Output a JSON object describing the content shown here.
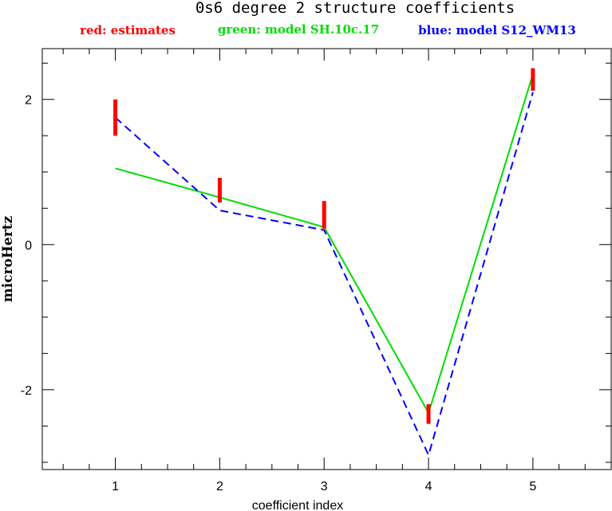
{
  "chart_data": {
    "type": "line",
    "title": "0s6 degree 2 structure coefficients",
    "xlabel": "coefficient index",
    "ylabel": "microHertz",
    "xlim": [
      0.3,
      5.75
    ],
    "ylim": [
      -3.1,
      2.7
    ],
    "x_ticks": [
      1,
      2,
      3,
      4,
      5
    ],
    "y_ticks": [
      -2,
      0,
      2
    ],
    "grid": false,
    "legend_position": "top",
    "legend": [
      {
        "text": "red: estimates",
        "color": "#ff0000"
      },
      {
        "text": "green: model SH.10c.17",
        "color": "#00dd00"
      },
      {
        "text": "blue: model S12_WM13",
        "color": "#0000ff"
      }
    ],
    "estimates": {
      "name": "red: estimates",
      "color": "#ff0000",
      "x": [
        1,
        2,
        3,
        4,
        5
      ],
      "lower": [
        1.5,
        0.58,
        0.22,
        -2.47,
        2.12
      ],
      "upper": [
        2.0,
        0.92,
        0.6,
        -2.2,
        2.43
      ]
    },
    "series": [
      {
        "name": "green: model SH.10c.17",
        "color": "#00dd00",
        "style": "solid",
        "x": [
          1,
          2,
          3,
          4,
          5
        ],
        "y": [
          1.05,
          0.65,
          0.24,
          -2.32,
          2.35
        ]
      },
      {
        "name": "blue: model S12_WM13",
        "color": "#0000ff",
        "style": "dashed",
        "x": [
          1,
          2,
          3,
          4,
          5
        ],
        "y": [
          1.75,
          0.47,
          0.2,
          -2.9,
          2.1
        ]
      }
    ]
  }
}
